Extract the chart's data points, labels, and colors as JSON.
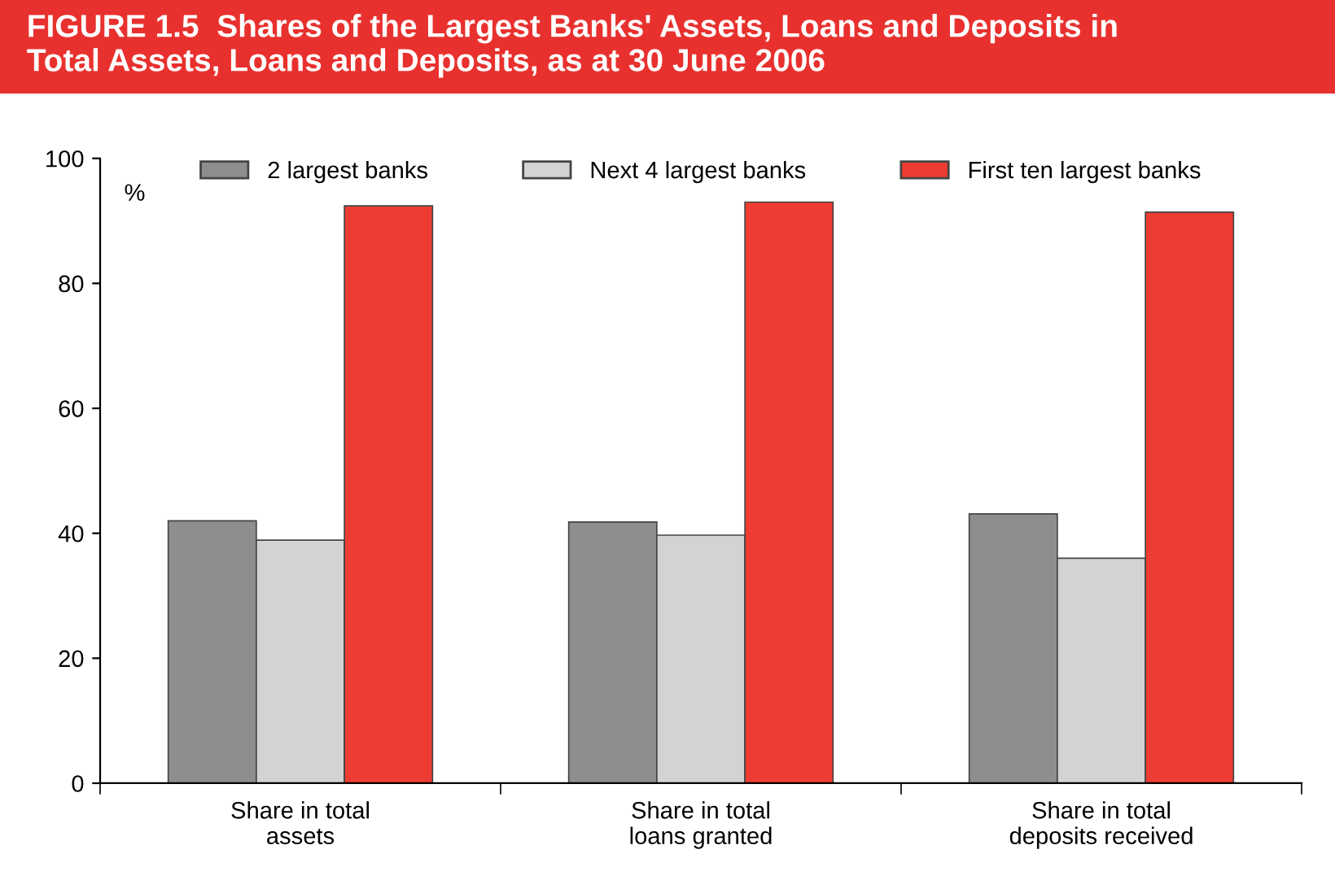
{
  "chart_data": {
    "type": "bar",
    "title": "FIGURE 1.5  Shares of the Largest Banks' Assets, Loans and Deposits in\nTotal Assets, Loans and Deposits, as at 30 June 2006",
    "ylabel": "%",
    "categories": [
      "Share in total\nassets",
      "Share in total\nloans granted",
      "Share in total\ndeposits received"
    ],
    "series": [
      {
        "name": "2 largest banks",
        "color": "#8e8e90",
        "values": [
          42.0,
          41.8,
          43.1
        ]
      },
      {
        "name": "Next 4 largest banks",
        "color": "#d3d3d5",
        "values": [
          38.9,
          39.7,
          36.0
        ]
      },
      {
        "name": "First ten largest banks",
        "color": "#ee3c33",
        "values": [
          92.4,
          93.0,
          91.4
        ]
      }
    ],
    "ylim": [
      0,
      100
    ],
    "yticks": [
      0,
      20,
      40,
      60,
      80,
      100
    ],
    "grid": false,
    "legend": "top"
  }
}
